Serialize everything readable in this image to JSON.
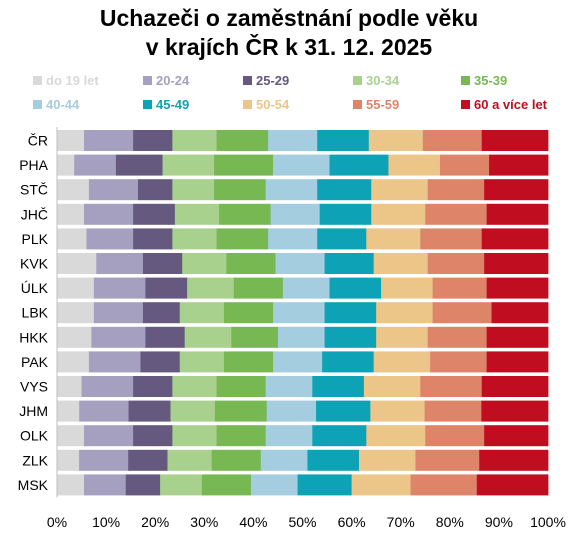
{
  "chart_data": {
    "type": "bar",
    "orientation": "horizontal",
    "stacked": "percent",
    "title": [
      "Uchazeči o zaměstnání podle věku",
      "v krajích ČR k 31. 12. 2025"
    ],
    "categories": [
      "ČR",
      "PHA",
      "STČ",
      "JHČ",
      "PLK",
      "KVK",
      "ÚLK",
      "LBK",
      "HKK",
      "PAK",
      "VYS",
      "JHM",
      "OLK",
      "ZLK",
      "MSK"
    ],
    "xlim": [
      0,
      100
    ],
    "xticks": [
      0,
      10,
      20,
      30,
      40,
      50,
      60,
      70,
      80,
      90,
      100
    ],
    "tick_suffix": "%",
    "grid": false,
    "legend_position": "top",
    "series": [
      {
        "name": "do 19 let",
        "color": "#d9d9d9",
        "values": [
          5.5,
          3.5,
          6.5,
          5.5,
          6.0,
          8.0,
          7.5,
          7.5,
          7.0,
          6.5,
          5.0,
          4.5,
          5.5,
          4.5,
          5.5
        ]
      },
      {
        "name": "20-24",
        "color": "#a6a0c0",
        "values": [
          10.0,
          8.5,
          10.0,
          10.0,
          9.5,
          9.5,
          10.5,
          10.0,
          11.0,
          10.5,
          10.5,
          10.0,
          10.0,
          10.0,
          8.5
        ]
      },
      {
        "name": "25-29",
        "color": "#65597f",
        "values": [
          8.0,
          9.5,
          7.0,
          8.5,
          8.0,
          8.0,
          8.5,
          7.5,
          8.0,
          8.0,
          8.0,
          8.5,
          8.0,
          8.0,
          7.0
        ]
      },
      {
        "name": "30-34",
        "color": "#a9d18e",
        "values": [
          9.0,
          10.5,
          8.5,
          9.0,
          9.0,
          9.0,
          9.5,
          9.0,
          9.5,
          9.0,
          9.0,
          9.0,
          9.0,
          9.0,
          8.5
        ]
      },
      {
        "name": "35-39",
        "color": "#77b853",
        "values": [
          10.5,
          12.0,
          10.5,
          10.5,
          10.5,
          10.0,
          10.0,
          10.0,
          9.5,
          10.0,
          10.0,
          10.5,
          10.0,
          10.0,
          10.0
        ]
      },
      {
        "name": "40-44",
        "color": "#a5cde0",
        "values": [
          10.0,
          11.5,
          10.5,
          10.0,
          10.0,
          10.0,
          9.5,
          10.5,
          9.5,
          10.0,
          9.5,
          10.0,
          9.5,
          9.5,
          9.5
        ]
      },
      {
        "name": "45-49",
        "color": "#0da2b6",
        "values": [
          10.5,
          12.0,
          11.0,
          10.5,
          10.0,
          10.0,
          10.5,
          10.5,
          10.5,
          10.5,
          10.5,
          11.0,
          11.0,
          10.5,
          11.0
        ]
      },
      {
        "name": "50-54",
        "color": "#ebc688",
        "values": [
          11.0,
          10.5,
          11.5,
          11.0,
          11.0,
          11.0,
          10.5,
          11.5,
          10.5,
          11.5,
          11.5,
          11.0,
          12.0,
          11.5,
          12.0
        ]
      },
      {
        "name": "55-59",
        "color": "#de8468",
        "values": [
          12.0,
          10.0,
          11.5,
          12.5,
          12.5,
          11.5,
          11.0,
          12.0,
          12.0,
          11.5,
          12.5,
          11.5,
          12.0,
          13.0,
          13.5
        ]
      },
      {
        "name": "60 a více let",
        "color": "#c00d20",
        "values": [
          13.5,
          12.0,
          13.0,
          12.5,
          13.5,
          13.0,
          12.5,
          11.5,
          12.5,
          12.5,
          13.5,
          13.5,
          13.0,
          14.0,
          14.5
        ]
      }
    ]
  }
}
